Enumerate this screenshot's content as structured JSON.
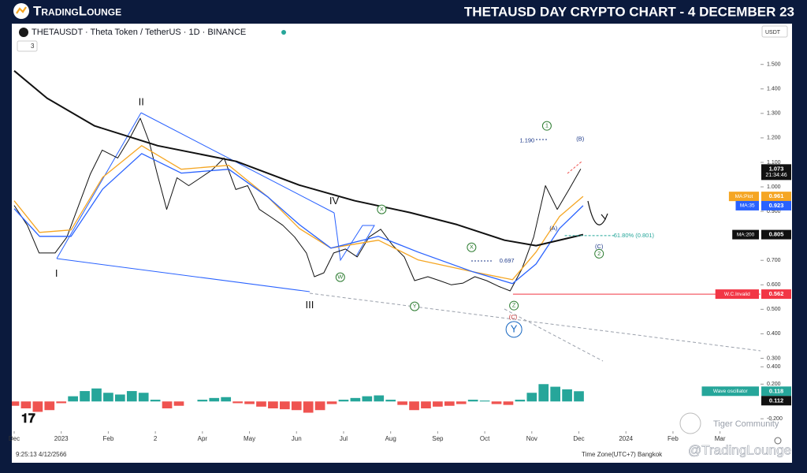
{
  "header": {
    "logo": "TradingLounge",
    "title": "THETAUSD DAY CRYPTO CHART - 4 DECEMBER 23"
  },
  "toolbar": {
    "indicator_count": "3",
    "currency": "USDT"
  },
  "footer": {
    "time": "9:25:13 4/12/2566",
    "timezone": "Time Zone(UTC+7) Bangkok",
    "watermark": "Tiger Community",
    "handle": "@TradingLounge"
  },
  "chart_data": [
    {
      "type": "line",
      "title": "THETAUSDT · Theta Token / TetherUS · 1D · BINANCE",
      "grid": false,
      "xlim": [
        0,
        15.86
      ],
      "ylim": [
        0.25,
        1.66
      ],
      "xticks": [
        {
          "value": 0,
          "label": "Dec"
        },
        {
          "value": 1,
          "label": "2023"
        },
        {
          "value": 2,
          "label": "Feb"
        },
        {
          "value": 3,
          "label": "2"
        },
        {
          "value": 4,
          "label": "Apr"
        },
        {
          "value": 5,
          "label": "May"
        },
        {
          "value": 6,
          "label": "Jun"
        },
        {
          "value": 7,
          "label": "Jul"
        },
        {
          "value": 8,
          "label": "Aug"
        },
        {
          "value": 9,
          "label": "Sep"
        },
        {
          "value": 10,
          "label": "Oct"
        },
        {
          "value": 11,
          "label": "Nov"
        },
        {
          "value": 12,
          "label": "Dec"
        },
        {
          "value": 13,
          "label": "2024"
        },
        {
          "value": 14,
          "label": "Feb"
        },
        {
          "value": 15,
          "label": "Mar"
        }
      ],
      "yticks": [
        {
          "value": 1.5,
          "label": "1.500"
        },
        {
          "value": 1.4,
          "label": "1.400"
        },
        {
          "value": 1.3,
          "label": "1.300"
        },
        {
          "value": 1.2,
          "label": "1.200"
        },
        {
          "value": 1.1,
          "label": "1.100"
        },
        {
          "value": 1.0,
          "label": "1.000"
        },
        {
          "value": 0.9,
          "label": "0.900"
        },
        {
          "value": 0.7,
          "label": "0.700"
        },
        {
          "value": 0.6,
          "label": "0.600"
        },
        {
          "value": 0.5,
          "label": "0.500"
        },
        {
          "value": 0.4,
          "label": "0.400"
        },
        {
          "value": 0.3,
          "label": "0.300"
        }
      ],
      "last_time": "21:34:46",
      "series": [
        {
          "color": "#111111",
          "width": 1,
          "x": [
            0,
            0.28,
            0.53,
            0.87,
            1.12,
            1.37,
            1.62,
            1.87,
            2.2,
            2.46,
            2.68,
            2.87,
            3.04,
            3.24,
            3.46,
            3.71,
            3.96,
            4.21,
            4.46,
            4.71,
            4.96,
            5.21,
            5.46,
            5.71,
            5.96,
            6.21,
            6.38,
            6.58,
            6.79,
            7.04,
            7.29,
            7.54,
            7.79,
            8.04,
            8.29,
            8.51,
            8.79,
            9.04,
            9.29,
            9.54,
            9.79,
            10.04,
            10.29,
            10.54,
            10.79,
            11.04,
            11.29,
            11.54,
            11.79,
            12.04
          ],
          "values": [
            0.924,
            0.843,
            0.73,
            0.73,
            0.795,
            0.924,
            1.053,
            1.15,
            1.118,
            1.2,
            1.28,
            1.183,
            1.053,
            0.908,
            1.037,
            1.005,
            1.037,
            1.07,
            1.118,
            0.989,
            1.005,
            0.908,
            0.876,
            0.843,
            0.795,
            0.73,
            0.633,
            0.649,
            0.73,
            0.746,
            0.714,
            0.795,
            0.827,
            0.762,
            0.714,
            0.617,
            0.633,
            0.617,
            0.6,
            0.607,
            0.633,
            0.617,
            0.594,
            0.575,
            0.665,
            0.795,
            1.005,
            0.908,
            0.989,
            1.073
          ]
        },
        {
          "name": "MA:Plot",
          "color": "#f5a623",
          "width": 1.3,
          "x": [
            0,
            0.54,
            1.21,
            1.88,
            2.71,
            3.55,
            4.56,
            5.39,
            6.06,
            6.73,
            7.74,
            8.58,
            9.75,
            10.59,
            11.09,
            11.59,
            12.09
          ],
          "values": [
            0.943,
            0.814,
            0.824,
            1.039,
            1.168,
            1.072,
            1.088,
            0.959,
            0.83,
            0.75,
            0.782,
            0.702,
            0.653,
            0.621,
            0.734,
            0.879,
            0.961
          ]
        },
        {
          "name": "MA:35",
          "color": "#2962ff",
          "width": 1.3,
          "x": [
            0,
            0.54,
            1.21,
            1.88,
            2.71,
            3.55,
            4.56,
            5.39,
            6.06,
            6.73,
            7.74,
            8.58,
            9.75,
            10.59,
            11.09,
            11.59,
            12.09
          ],
          "values": [
            0.911,
            0.798,
            0.798,
            0.991,
            1.136,
            1.056,
            1.072,
            0.959,
            0.846,
            0.75,
            0.798,
            0.734,
            0.653,
            0.605,
            0.685,
            0.83,
            0.923
          ]
        },
        {
          "name": "MA:200",
          "color": "#111111",
          "width": 2,
          "x": [
            0,
            0.7,
            1.71,
            3.05,
            4.72,
            6.06,
            7.24,
            8.41,
            9.41,
            10.42,
            11.09,
            12.09
          ],
          "values": [
            1.474,
            1.362,
            1.249,
            1.168,
            1.104,
            1.007,
            0.943,
            0.895,
            0.846,
            0.782,
            0.76,
            0.805
          ]
        }
      ],
      "levels": [
        {
          "label": "W.C.Invalid",
          "value": 0.562,
          "color": "#f23645",
          "x_start": 10.6
        },
        {
          "value": 0.801,
          "color": "#26a69a",
          "x_start": 11.7,
          "x_end": 12.75
        }
      ],
      "annotations": [
        {
          "text": "II",
          "x": 2.7,
          "y": 1.345,
          "color": "#111111"
        },
        {
          "text": "I",
          "x": 0.9,
          "y": 0.644,
          "color": "#111111"
        },
        {
          "text": "III",
          "x": 6.28,
          "y": 0.515,
          "color": "#111111"
        },
        {
          "text": "IV",
          "x": 6.8,
          "y": 0.94,
          "color": "#111111"
        },
        {
          "text": "1.190",
          "x": 10.9,
          "y": 1.188,
          "color": "#1e3a8a",
          "small": true
        },
        {
          "text": "0.697",
          "x": 10.47,
          "y": 0.698,
          "color": "#1e3a8a",
          "small": true
        },
        {
          "text": "61.80% (0.801)",
          "x": 13.17,
          "y": 0.801,
          "color": "#26a69a",
          "small": true
        },
        {
          "text": "1",
          "x": 11.32,
          "y": 1.249,
          "color": "#2e7d32",
          "circle": true
        },
        {
          "text": "(B)",
          "x": 12.03,
          "y": 1.194,
          "color": "#1e3a8a",
          "small": true
        },
        {
          "text": "(A)",
          "x": 11.46,
          "y": 0.83,
          "color": "#1e3a8a",
          "small": true
        },
        {
          "text": "(C)",
          "x": 12.43,
          "y": 0.756,
          "color": "#1e3a8a",
          "small": true
        },
        {
          "text": "2",
          "x": 12.43,
          "y": 0.727,
          "color": "#2e7d32",
          "circle": true
        },
        {
          "text": "X",
          "x": 7.81,
          "y": 0.908,
          "color": "#2e7d32",
          "circle": true
        },
        {
          "text": "W",
          "x": 6.93,
          "y": 0.631,
          "color": "#2e7d32",
          "circle": true
        },
        {
          "text": "X",
          "x": 9.72,
          "y": 0.753,
          "color": "#2e7d32",
          "circle": true
        },
        {
          "text": "Y",
          "x": 8.51,
          "y": 0.512,
          "color": "#2e7d32",
          "circle": true
        },
        {
          "text": "Z",
          "x": 10.62,
          "y": 0.515,
          "color": "#2e7d32",
          "circle": true
        },
        {
          "text": "(C)",
          "x": 10.6,
          "y": 0.467,
          "color": "#c62828",
          "small": true
        },
        {
          "text": "Y",
          "x": 10.62,
          "y": 0.418,
          "color": "#1565c0",
          "circle": true,
          "big": true
        }
      ]
    },
    {
      "type": "bar",
      "xlim": [
        0,
        15.86
      ],
      "ylim": [
        -0.28,
        0.43
      ],
      "yticks": [
        {
          "value": 0.4,
          "label": "0.400"
        },
        {
          "value": 0.2,
          "label": "0.200"
        },
        {
          "value": -0.2,
          "label": "-0.200"
        }
      ],
      "up_color": "#26a69a",
      "down_color": "#ef5350",
      "x": [
        0,
        0.25,
        0.5,
        0.75,
        1,
        1.25,
        1.5,
        1.75,
        2,
        2.25,
        2.5,
        2.75,
        3,
        3.25,
        3.5,
        3.75,
        4,
        4.25,
        4.5,
        4.75,
        5,
        5.25,
        5.5,
        5.75,
        6,
        6.25,
        6.5,
        6.75,
        7,
        7.25,
        7.5,
        7.75,
        8,
        8.25,
        8.5,
        8.75,
        9,
        9.25,
        9.5,
        9.75,
        10,
        10.25,
        10.5,
        10.75,
        11,
        11.25,
        11.5,
        11.75,
        12
      ],
      "values": [
        -0.05,
        -0.08,
        -0.12,
        -0.1,
        -0.02,
        0.06,
        0.12,
        0.15,
        0.1,
        0.08,
        0.12,
        0.1,
        0.02,
        -0.08,
        -0.05,
        0.0,
        0.02,
        0.04,
        0.05,
        -0.02,
        -0.03,
        -0.06,
        -0.08,
        -0.09,
        -0.1,
        -0.13,
        -0.1,
        -0.03,
        0.02,
        0.04,
        0.06,
        0.07,
        0.02,
        -0.04,
        -0.1,
        -0.08,
        -0.06,
        -0.05,
        -0.03,
        0.02,
        0.01,
        -0.03,
        -0.04,
        0.02,
        0.1,
        0.2,
        0.17,
        0.14,
        0.118
      ],
      "tags": [
        {
          "label": "Wave oscillator",
          "value": 0.118,
          "color": "#26a69a"
        },
        {
          "value": 0.112,
          "color": "#111111"
        }
      ]
    }
  ]
}
